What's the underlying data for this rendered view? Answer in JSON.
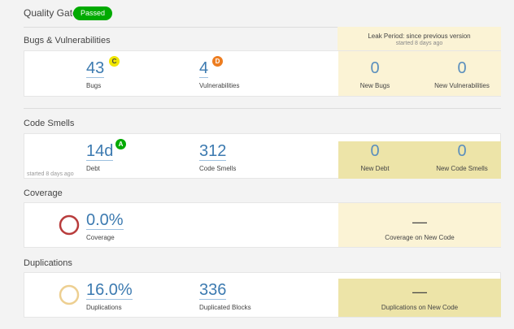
{
  "quality_gate": {
    "label": "Quality Gate",
    "status": "Passed",
    "status_color": "#00aa00"
  },
  "leak_period": {
    "title": "Leak Period: since previous version",
    "subtitle": "started 8 days ago"
  },
  "bugs_section": {
    "title": "Bugs & Vulnerabilities",
    "bugs": {
      "value": "43",
      "label": "Bugs",
      "rating": "C",
      "rating_color": "#f0e600"
    },
    "vulnerabilities": {
      "value": "4",
      "label": "Vulnerabilities",
      "rating": "D",
      "rating_color": "#ed7d20"
    },
    "new_bugs": {
      "value": "0",
      "label": "New Bugs"
    },
    "new_vulnerabilities": {
      "value": "0",
      "label": "New Vulnerabilities"
    }
  },
  "code_smells_section": {
    "title": "Code Smells",
    "debt": {
      "value": "14d",
      "label": "Debt",
      "rating": "A",
      "rating_color": "#00aa00"
    },
    "code_smells": {
      "value": "312",
      "label": "Code Smells"
    },
    "started_note": "started 8 days ago",
    "new_debt": {
      "value": "0",
      "label": "New Debt"
    },
    "new_code_smells": {
      "value": "0",
      "label": "New Code Smells"
    }
  },
  "coverage_section": {
    "title": "Coverage",
    "coverage": {
      "value": "0.0%",
      "label": "Coverage",
      "donut_color": "#b83c3c"
    },
    "new_coverage": {
      "value": "—",
      "label": "Coverage on New Code"
    }
  },
  "duplications_section": {
    "title": "Duplications",
    "duplications": {
      "value": "16.0%",
      "label": "Duplications",
      "donut_color": "#edcf91"
    },
    "duplicated_blocks": {
      "value": "336",
      "label": "Duplicated Blocks"
    },
    "new_duplications": {
      "value": "—",
      "label": "Duplications on New Code"
    }
  }
}
